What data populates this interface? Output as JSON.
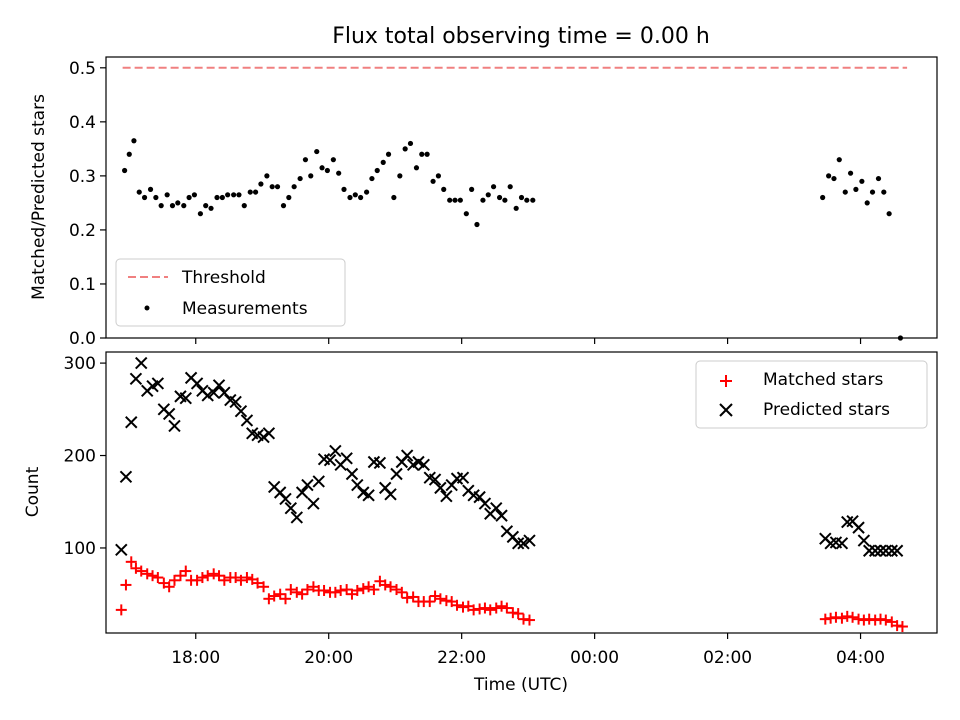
{
  "chart_data": [
    {
      "type": "scatter",
      "title": "Flux total observing time = 0.00 h",
      "xlabel": "",
      "ylabel": "Matched/Predicted stars",
      "ylim": [
        0,
        0.52
      ],
      "yticks": [
        "0.0",
        "0.1",
        "0.2",
        "0.3",
        "0.4",
        "0.5"
      ],
      "legend": "lower-left",
      "series": [
        {
          "name": "Threshold",
          "style": "dashed-line",
          "color": "#f08080",
          "x": [
            -7.1,
            4.7
          ],
          "y": [
            0.5,
            0.5
          ]
        },
        {
          "name": "Measurements",
          "style": "dots",
          "color": "#000000",
          "x": [
            -7.07,
            -7.0,
            -6.93,
            -6.85,
            -6.77,
            -6.68,
            -6.6,
            -6.52,
            -6.43,
            -6.35,
            -6.27,
            -6.18,
            -6.1,
            -6.02,
            -5.93,
            -5.85,
            -5.77,
            -5.68,
            -5.6,
            -5.52,
            -5.43,
            -5.35,
            -5.27,
            -5.18,
            -5.1,
            -5.02,
            -4.93,
            -4.85,
            -4.77,
            -4.68,
            -4.6,
            -4.52,
            -4.43,
            -4.35,
            -4.27,
            -4.18,
            -4.1,
            -4.02,
            -3.93,
            -3.85,
            -3.77,
            -3.68,
            -3.6,
            -3.52,
            -3.43,
            -3.35,
            -3.27,
            -3.18,
            -3.1,
            -3.02,
            -2.93,
            -2.85,
            -2.77,
            -2.68,
            -2.6,
            -2.52,
            -2.43,
            -2.35,
            -2.27,
            -2.18,
            -2.1,
            -2.02,
            -1.93,
            -1.85,
            -1.77,
            -1.68,
            -1.6,
            -1.52,
            -1.43,
            -1.35,
            -1.27,
            -1.18,
            -1.1,
            -1.02,
            -0.93,
            3.43,
            3.52,
            3.6,
            3.68,
            3.77,
            3.85,
            3.93,
            4.02,
            4.1,
            4.18,
            4.27,
            4.35,
            4.43,
            4.6
          ],
          "y": [
            0.31,
            0.34,
            0.365,
            0.27,
            0.26,
            0.275,
            0.26,
            0.245,
            0.265,
            0.245,
            0.25,
            0.245,
            0.26,
            0.265,
            0.23,
            0.245,
            0.24,
            0.26,
            0.26,
            0.265,
            0.265,
            0.265,
            0.245,
            0.27,
            0.27,
            0.285,
            0.3,
            0.28,
            0.28,
            0.245,
            0.26,
            0.28,
            0.295,
            0.33,
            0.3,
            0.345,
            0.315,
            0.31,
            0.33,
            0.305,
            0.275,
            0.26,
            0.265,
            0.26,
            0.27,
            0.295,
            0.31,
            0.325,
            0.34,
            0.26,
            0.3,
            0.35,
            0.36,
            0.315,
            0.34,
            0.34,
            0.29,
            0.3,
            0.275,
            0.255,
            0.255,
            0.255,
            0.23,
            0.275,
            0.21,
            0.255,
            0.265,
            0.28,
            0.26,
            0.255,
            0.28,
            0.24,
            0.26,
            0.255,
            0.255,
            0.26,
            0.3,
            0.295,
            0.33,
            0.27,
            0.305,
            0.275,
            0.29,
            0.25,
            0.27,
            0.295,
            0.27,
            0.23,
            0.0
          ]
        }
      ]
    },
    {
      "type": "scatter",
      "title": "",
      "xlabel": "Time (UTC)",
      "ylabel": "Count",
      "ylim": [
        8,
        312
      ],
      "yticks": [
        "100",
        "200",
        "300"
      ],
      "xticks": [
        "18:00",
        "20:00",
        "22:00",
        "00:00",
        "02:00",
        "04:00"
      ],
      "legend": "upper-right",
      "series": [
        {
          "name": "Matched stars",
          "marker": "+",
          "color": "#ff0000",
          "x": [
            -7.12,
            -7.05,
            -6.97,
            -6.9,
            -6.82,
            -6.73,
            -6.65,
            -6.57,
            -6.48,
            -6.4,
            -6.32,
            -6.23,
            -6.15,
            -6.07,
            -5.98,
            -5.9,
            -5.82,
            -5.73,
            -5.65,
            -5.57,
            -5.48,
            -5.4,
            -5.32,
            -5.23,
            -5.15,
            -5.07,
            -4.98,
            -4.9,
            -4.82,
            -4.73,
            -4.65,
            -4.57,
            -4.48,
            -4.4,
            -4.32,
            -4.23,
            -4.15,
            -4.07,
            -3.98,
            -3.9,
            -3.82,
            -3.73,
            -3.65,
            -3.57,
            -3.48,
            -3.4,
            -3.32,
            -3.23,
            -3.15,
            -3.07,
            -2.98,
            -2.9,
            -2.82,
            -2.73,
            -2.65,
            -2.57,
            -2.48,
            -2.4,
            -2.32,
            -2.23,
            -2.15,
            -2.07,
            -1.98,
            -1.9,
            -1.82,
            -1.73,
            -1.65,
            -1.57,
            -1.48,
            -1.4,
            -1.32,
            -1.23,
            -1.15,
            -1.07,
            -0.98,
            3.47,
            3.55,
            3.63,
            3.72,
            3.8,
            3.88,
            3.97,
            4.05,
            4.13,
            4.22,
            4.3,
            4.38,
            4.47,
            4.55,
            4.63
          ],
          "y": [
            33,
            60,
            85,
            78,
            75,
            72,
            70,
            68,
            62,
            58,
            65,
            70,
            75,
            65,
            65,
            68,
            70,
            72,
            70,
            65,
            68,
            68,
            65,
            68,
            66,
            62,
            58,
            45,
            48,
            50,
            45,
            55,
            52,
            50,
            55,
            58,
            54,
            54,
            52,
            52,
            54,
            55,
            50,
            54,
            56,
            58,
            55,
            64,
            60,
            58,
            55,
            52,
            46,
            47,
            42,
            42,
            42,
            48,
            45,
            43,
            42,
            38,
            36,
            37,
            33,
            34,
            35,
            33,
            35,
            37,
            35,
            30,
            29,
            23,
            22,
            23,
            24,
            25,
            24,
            26,
            25,
            23,
            22,
            23,
            22,
            23,
            22,
            20,
            16,
            15
          ],
          "note_points_shown": ""
        },
        {
          "name": "Predicted stars",
          "marker": "x",
          "color": "#000000",
          "x": [
            -7.12,
            -7.05,
            -6.97,
            -6.9,
            -6.82,
            -6.73,
            -6.65,
            -6.57,
            -6.48,
            -6.4,
            -6.32,
            -6.23,
            -6.15,
            -6.07,
            -5.98,
            -5.9,
            -5.82,
            -5.73,
            -5.65,
            -5.57,
            -5.48,
            -5.4,
            -5.32,
            -5.23,
            -5.15,
            -5.07,
            -4.98,
            -4.9,
            -4.82,
            -4.73,
            -4.65,
            -4.57,
            -4.48,
            -4.4,
            -4.32,
            -4.23,
            -4.15,
            -4.07,
            -3.98,
            -3.9,
            -3.82,
            -3.73,
            -3.65,
            -3.57,
            -3.48,
            -3.4,
            -3.32,
            -3.23,
            -3.15,
            -3.07,
            -2.98,
            -2.9,
            -2.82,
            -2.73,
            -2.65,
            -2.57,
            -2.48,
            -2.4,
            -2.32,
            -2.23,
            -2.15,
            -2.07,
            -1.98,
            -1.9,
            -1.82,
            -1.73,
            -1.65,
            -1.57,
            -1.48,
            -1.4,
            -1.32,
            -1.23,
            -1.15,
            -1.07,
            -0.98,
            3.47,
            3.55,
            3.63,
            3.72,
            3.8,
            3.88,
            3.97,
            4.05,
            4.13,
            4.22,
            4.3,
            4.38,
            4.47,
            4.55
          ],
          "y": [
            98,
            177,
            236,
            283,
            300,
            270,
            275,
            278,
            250,
            245,
            232,
            264,
            262,
            284,
            278,
            270,
            265,
            268,
            276,
            268,
            260,
            258,
            248,
            238,
            224,
            222,
            220,
            224,
            166,
            160,
            153,
            143,
            133,
            160,
            168,
            148,
            172,
            196,
            195,
            205,
            190,
            197,
            180,
            168,
            160,
            157,
            193,
            192,
            165,
            158,
            180,
            193,
            200,
            190,
            193,
            190,
            176,
            174,
            165,
            156,
            168,
            175,
            176,
            162,
            157,
            155,
            148,
            137,
            143,
            135,
            118,
            112,
            105,
            105,
            108,
            110,
            105,
            106,
            105,
            128,
            129,
            122,
            108,
            97,
            97,
            97,
            97,
            97,
            97
          ],
          "note_points_shown": ""
        }
      ]
    }
  ]
}
